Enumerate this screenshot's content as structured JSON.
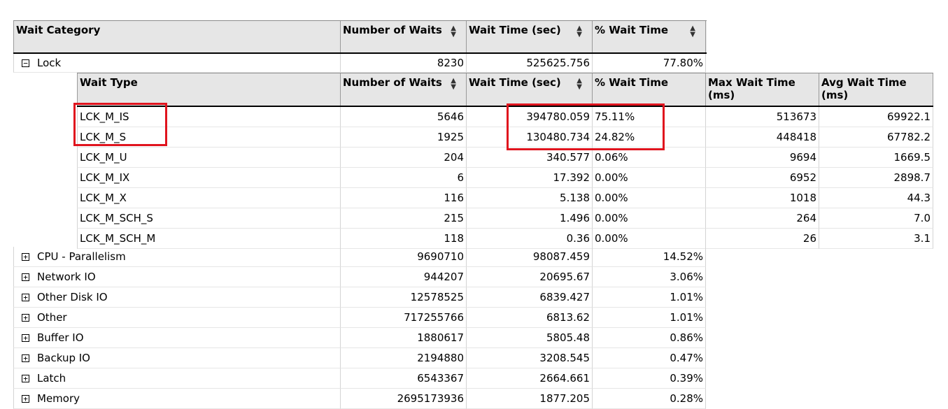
{
  "top_header": {
    "category": "Wait Category",
    "num_waits": "Number of Waits",
    "wait_time": "Wait Time (sec)",
    "pct_wait": "% Wait Time"
  },
  "expanded_group": {
    "name": "Lock",
    "num_waits": "8230",
    "wait_time": "525625.756",
    "pct_wait": "77.80%"
  },
  "sub_header": {
    "wait_type": "Wait Type",
    "num_waits": "Number of Waits",
    "wait_time": "Wait Time (sec)",
    "pct_wait": "% Wait Time",
    "max_wait": "Max Wait Time\n(ms)",
    "avg_wait": "Avg Wait Time\n(ms)"
  },
  "sub_rows": [
    {
      "type": "LCK_M_IS",
      "num": "5646",
      "time": "394780.059",
      "pct": "75.11%",
      "max": "513673",
      "avg": "69922.1"
    },
    {
      "type": "LCK_M_S",
      "num": "1925",
      "time": "130480.734",
      "pct": "24.82%",
      "max": "448418",
      "avg": "67782.2"
    },
    {
      "type": "LCK_M_U",
      "num": "204",
      "time": "340.577",
      "pct": "0.06%",
      "max": "9694",
      "avg": "1669.5"
    },
    {
      "type": "LCK_M_IX",
      "num": "6",
      "time": "17.392",
      "pct": "0.00%",
      "max": "6952",
      "avg": "2898.7"
    },
    {
      "type": "LCK_M_X",
      "num": "116",
      "time": "5.138",
      "pct": "0.00%",
      "max": "1018",
      "avg": "44.3"
    },
    {
      "type": "LCK_M_SCH_S",
      "num": "215",
      "time": "1.496",
      "pct": "0.00%",
      "max": "264",
      "avg": "7.0"
    },
    {
      "type": "LCK_M_SCH_M",
      "num": "118",
      "time": "0.36",
      "pct": "0.00%",
      "max": "26",
      "avg": "3.1"
    }
  ],
  "collapsed_groups": [
    {
      "name": "CPU - Parallelism",
      "num": "9690710",
      "time": "98087.459",
      "pct": "14.52%"
    },
    {
      "name": "Network IO",
      "num": "944207",
      "time": "20695.67",
      "pct": "3.06%"
    },
    {
      "name": "Other Disk IO",
      "num": "12578525",
      "time": "6839.427",
      "pct": "1.01%"
    },
    {
      "name": "Other",
      "num": "717255766",
      "time": "6813.62",
      "pct": "1.01%"
    },
    {
      "name": "Buffer IO",
      "num": "1880617",
      "time": "5805.48",
      "pct": "0.86%"
    },
    {
      "name": "Backup IO",
      "num": "2194880",
      "time": "3208.545",
      "pct": "0.47%"
    },
    {
      "name": "Latch",
      "num": "6543367",
      "time": "2664.661",
      "pct": "0.39%"
    },
    {
      "name": "Memory",
      "num": "2695173936",
      "time": "1877.205",
      "pct": "0.28%"
    }
  ],
  "icons": {
    "collapse": "minus-box-icon",
    "expand": "plus-box-icon",
    "sort": "sort-arrows-icon"
  },
  "colors": {
    "header_bg": "#e6e6e6",
    "highlight": "#e0141e",
    "grid": "#d4d4d4"
  }
}
